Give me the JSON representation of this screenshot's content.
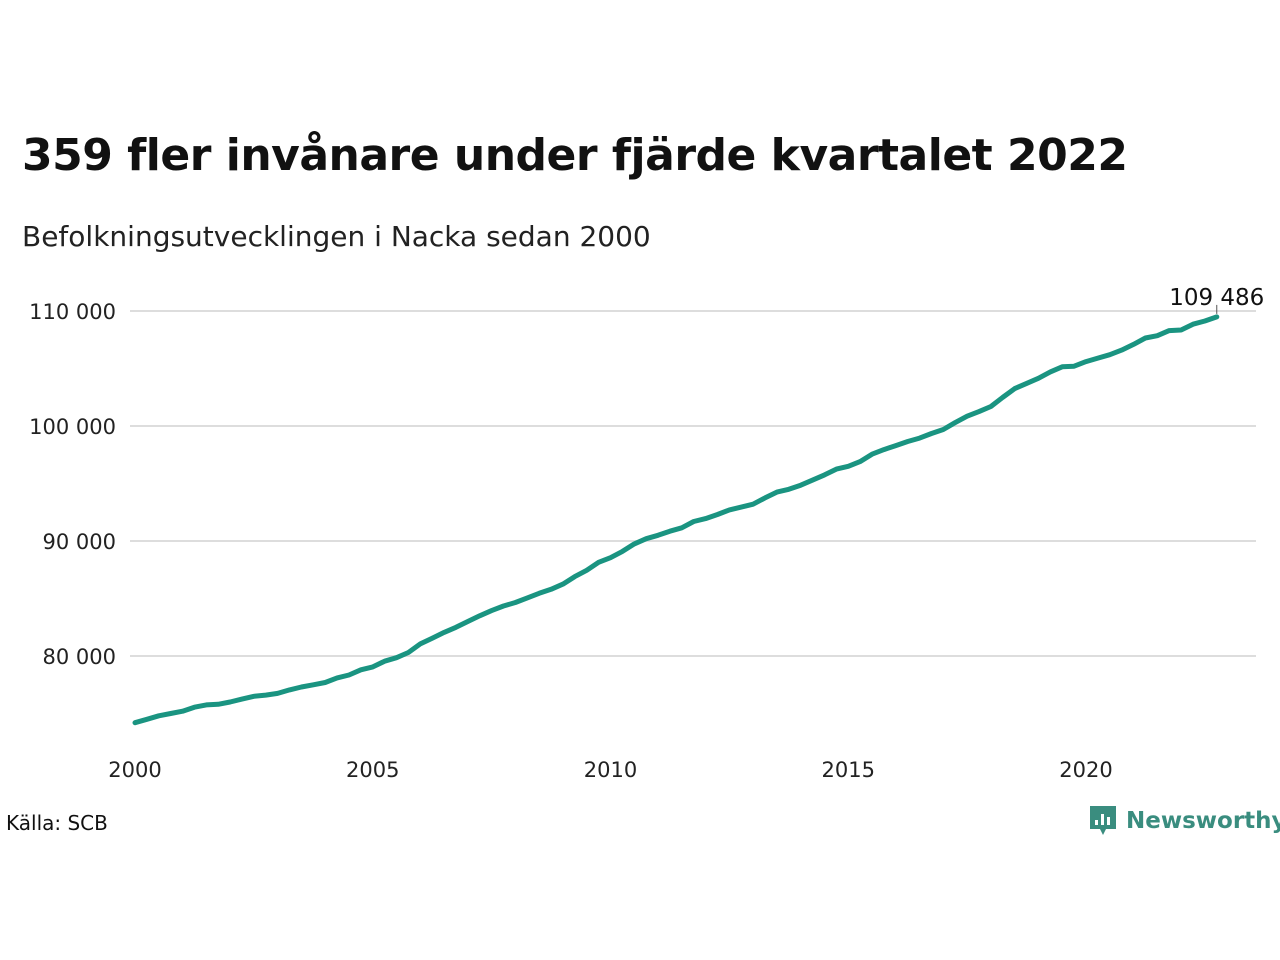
{
  "header": {
    "title": "359 fler invånare under fjärde kvartalet 2022",
    "subtitle": "Befolkningsutvecklingen i Nacka sedan 2000"
  },
  "footer": {
    "source": "Källa: SCB",
    "brand": "Newsworthy"
  },
  "colors": {
    "line": "#1a9481",
    "grid": "#dddddd",
    "brand": "#3a8d7f"
  },
  "chart_data": {
    "type": "line",
    "title": "359 fler invånare under fjärde kvartalet 2022",
    "subtitle": "Befolkningsutvecklingen i Nacka sedan 2000",
    "xlabel": "",
    "ylabel": "",
    "xlim": [
      2000,
      2023
    ],
    "ylim": [
      73000,
      111000
    ],
    "x_ticks": [
      2000,
      2005,
      2010,
      2015,
      2020
    ],
    "y_ticks": [
      80000,
      90000,
      100000,
      110000
    ],
    "y_tick_labels": [
      "80 000",
      "90 000",
      "100 000",
      "110 000"
    ],
    "grid": "horizontal",
    "legend": "none",
    "end_label": "109 486",
    "series": [
      {
        "values": [
          [
            2000.0,
            74200
          ],
          [
            2000.25,
            74500
          ],
          [
            2000.5,
            74800
          ],
          [
            2000.75,
            75000
          ],
          [
            2001.0,
            75200
          ],
          [
            2001.25,
            75550
          ],
          [
            2001.5,
            75750
          ],
          [
            2001.75,
            75800
          ],
          [
            2002.0,
            76000
          ],
          [
            2002.25,
            76250
          ],
          [
            2002.5,
            76500
          ],
          [
            2002.75,
            76600
          ],
          [
            2003.0,
            76750
          ],
          [
            2003.25,
            77050
          ],
          [
            2003.5,
            77300
          ],
          [
            2003.75,
            77500
          ],
          [
            2004.0,
            77700
          ],
          [
            2004.25,
            78100
          ],
          [
            2004.5,
            78350
          ],
          [
            2004.75,
            78800
          ],
          [
            2005.0,
            79050
          ],
          [
            2005.25,
            79550
          ],
          [
            2005.5,
            79850
          ],
          [
            2005.75,
            80300
          ],
          [
            2006.0,
            81050
          ],
          [
            2006.25,
            81550
          ],
          [
            2006.5,
            82050
          ],
          [
            2006.75,
            82500
          ],
          [
            2007.0,
            83000
          ],
          [
            2007.25,
            83500
          ],
          [
            2007.5,
            83950
          ],
          [
            2007.75,
            84350
          ],
          [
            2008.0,
            84650
          ],
          [
            2008.25,
            85050
          ],
          [
            2008.5,
            85450
          ],
          [
            2008.75,
            85800
          ],
          [
            2009.0,
            86250
          ],
          [
            2009.25,
            86900
          ],
          [
            2009.5,
            87450
          ],
          [
            2009.75,
            88150
          ],
          [
            2010.0,
            88550
          ],
          [
            2010.25,
            89100
          ],
          [
            2010.5,
            89750
          ],
          [
            2010.75,
            90200
          ],
          [
            2011.0,
            90500
          ],
          [
            2011.25,
            90850
          ],
          [
            2011.5,
            91150
          ],
          [
            2011.75,
            91700
          ],
          [
            2012.0,
            91950
          ],
          [
            2012.25,
            92300
          ],
          [
            2012.5,
            92700
          ],
          [
            2012.75,
            92950
          ],
          [
            2013.0,
            93200
          ],
          [
            2013.25,
            93750
          ],
          [
            2013.5,
            94250
          ],
          [
            2013.75,
            94500
          ],
          [
            2014.0,
            94850
          ],
          [
            2014.25,
            95300
          ],
          [
            2014.5,
            95750
          ],
          [
            2014.75,
            96250
          ],
          [
            2015.0,
            96500
          ],
          [
            2015.25,
            96900
          ],
          [
            2015.5,
            97550
          ],
          [
            2015.75,
            97950
          ],
          [
            2016.0,
            98300
          ],
          [
            2016.25,
            98650
          ],
          [
            2016.5,
            98950
          ],
          [
            2016.75,
            99350
          ],
          [
            2017.0,
            99700
          ],
          [
            2017.25,
            100300
          ],
          [
            2017.5,
            100850
          ],
          [
            2017.75,
            101250
          ],
          [
            2018.0,
            101700
          ],
          [
            2018.25,
            102500
          ],
          [
            2018.5,
            103250
          ],
          [
            2018.75,
            103700
          ],
          [
            2019.0,
            104150
          ],
          [
            2019.25,
            104700
          ],
          [
            2019.5,
            105150
          ],
          [
            2019.75,
            105200
          ],
          [
            2020.0,
            105600
          ],
          [
            2020.25,
            105900
          ],
          [
            2020.5,
            106200
          ],
          [
            2020.75,
            106600
          ],
          [
            2021.0,
            107100
          ],
          [
            2021.25,
            107650
          ],
          [
            2021.5,
            107850
          ],
          [
            2021.75,
            108300
          ],
          [
            2022.0,
            108350
          ],
          [
            2022.25,
            108850
          ],
          [
            2022.5,
            109130
          ],
          [
            2022.75,
            109486
          ]
        ]
      }
    ]
  }
}
